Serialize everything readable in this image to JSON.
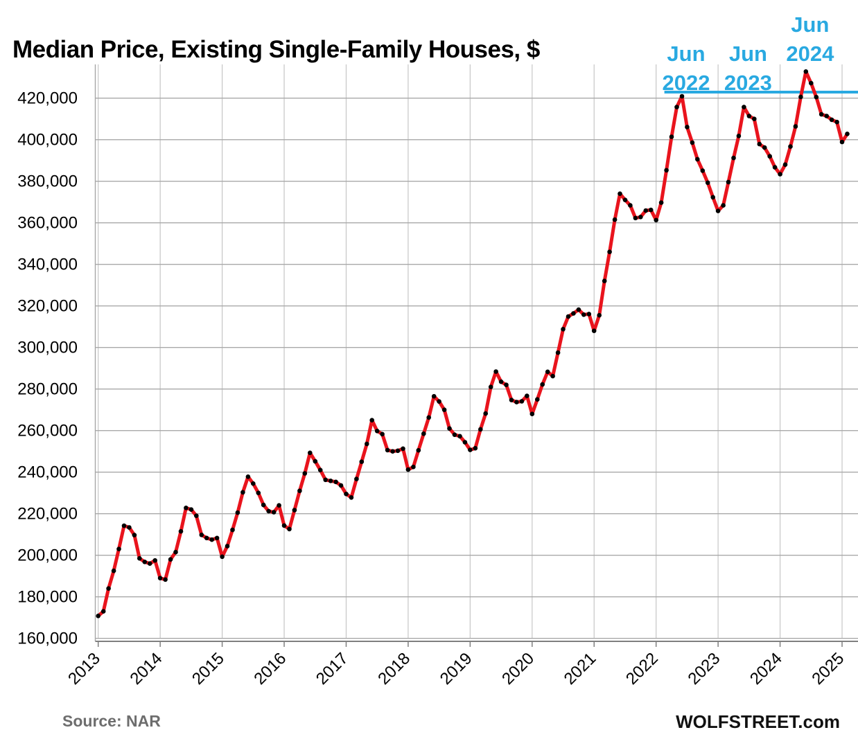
{
  "header": {
    "title": "Median Price, Existing Single-Family Houses, $"
  },
  "footer": {
    "source": "Source: NAR",
    "brand": "WOLFSTREET.com"
  },
  "colors": {
    "line": "#e9141d",
    "dot": "#000000",
    "annotation": "#29a9e1",
    "grid_horizontal": "#a9a9a9",
    "grid_vertical": "#c6c6c6",
    "axis": "#7f7f7f",
    "plot_border": "#a6a6a6",
    "tick_label": "#000000"
  },
  "chart_data": {
    "type": "line",
    "title": "Median Price, Existing Single-Family Houses, $",
    "source": "NAR",
    "frequency": "monthly",
    "start": "2013-01",
    "end": "2025-02",
    "xlabel": "",
    "ylabel": "",
    "ylim": [
      160000,
      435000
    ],
    "grid": true,
    "legend": false,
    "y_ticks": [
      {
        "value": 420000,
        "label": "420,000"
      },
      {
        "value": 400000,
        "label": "400,000"
      },
      {
        "value": 380000,
        "label": "380,000"
      },
      {
        "value": 360000,
        "label": "360,000"
      },
      {
        "value": 340000,
        "label": "340,000"
      },
      {
        "value": 320000,
        "label": "320,000"
      },
      {
        "value": 300000,
        "label": "300,000"
      },
      {
        "value": 280000,
        "label": "280,000"
      },
      {
        "value": 260000,
        "label": "260,000"
      },
      {
        "value": 240000,
        "label": "240,000"
      },
      {
        "value": 220000,
        "label": "220,000"
      },
      {
        "value": 200000,
        "label": "200,000"
      },
      {
        "value": 180000,
        "label": "180,000"
      },
      {
        "value": 160000,
        "label": "160,000"
      }
    ],
    "x_ticks": [
      {
        "year": 2013,
        "label": "2013"
      },
      {
        "year": 2014,
        "label": "2014"
      },
      {
        "year": 2015,
        "label": "2015"
      },
      {
        "year": 2016,
        "label": "2016"
      },
      {
        "year": 2017,
        "label": "2017"
      },
      {
        "year": 2018,
        "label": "2018"
      },
      {
        "year": 2019,
        "label": "2019"
      },
      {
        "year": 2020,
        "label": "2020"
      },
      {
        "year": 2021,
        "label": "2021"
      },
      {
        "year": 2022,
        "label": "2022"
      },
      {
        "year": 2023,
        "label": "2023"
      },
      {
        "year": 2024,
        "label": "2024"
      },
      {
        "year": 2025,
        "label": "2025"
      }
    ],
    "series": [
      {
        "name": "Median price, existing single-family houses, $",
        "values": [
          170800,
          173000,
          184000,
          192500,
          203000,
          214200,
          213400,
          209700,
          198500,
          196800,
          196000,
          197500,
          189000,
          188300,
          198000,
          201500,
          211500,
          222800,
          222000,
          219000,
          209800,
          208300,
          207500,
          208300,
          199300,
          204400,
          212200,
          220500,
          230300,
          237800,
          234500,
          230000,
          224200,
          221200,
          220700,
          224000,
          214300,
          212600,
          221700,
          231000,
          239400,
          249300,
          245200,
          241000,
          236300,
          235800,
          235300,
          233600,
          229500,
          227800,
          236700,
          245000,
          253600,
          265000,
          259800,
          258300,
          250600,
          250000,
          250300,
          251300,
          241200,
          242500,
          250500,
          258500,
          266300,
          276500,
          274000,
          270000,
          261000,
          258000,
          257300,
          254400,
          250700,
          251500,
          260600,
          268200,
          281000,
          288400,
          283500,
          282000,
          274700,
          273700,
          274100,
          276700,
          268000,
          275000,
          282200,
          288300,
          286200,
          297500,
          308800,
          314900,
          316400,
          318200,
          315800,
          316100,
          308000,
          315500,
          332000,
          346000,
          361500,
          374000,
          371000,
          368400,
          362300,
          362800,
          365900,
          366200,
          361300,
          369700,
          385300,
          401400,
          415700,
          420900,
          406100,
          398600,
          390600,
          385100,
          379300,
          372300,
          365700,
          368400,
          379600,
          391200,
          401800,
          415700,
          411400,
          410000,
          397900,
          396200,
          392000,
          386700,
          383400,
          388000,
          396700,
          406400,
          420600,
          432800,
          427200,
          420500,
          412200,
          411400,
          409600,
          408500,
          398900,
          402800
        ]
      }
    ],
    "annotations": [
      {
        "name": "jun-2022",
        "line1": "Jun",
        "line2": "2022",
        "month_index": 113,
        "peak_value": 420900,
        "lifted": false
      },
      {
        "name": "jun-2023",
        "line1": "Jun",
        "line2": "2023",
        "month_index": 125,
        "peak_value": 415700,
        "lifted": false
      },
      {
        "name": "jun-2024",
        "line1": "Jun",
        "line2": "2024",
        "month_index": 137,
        "peak_value": 432800,
        "lifted": true
      }
    ],
    "peak_reference_line": {
      "value": 422900,
      "start_month_index": 109.6
    }
  }
}
